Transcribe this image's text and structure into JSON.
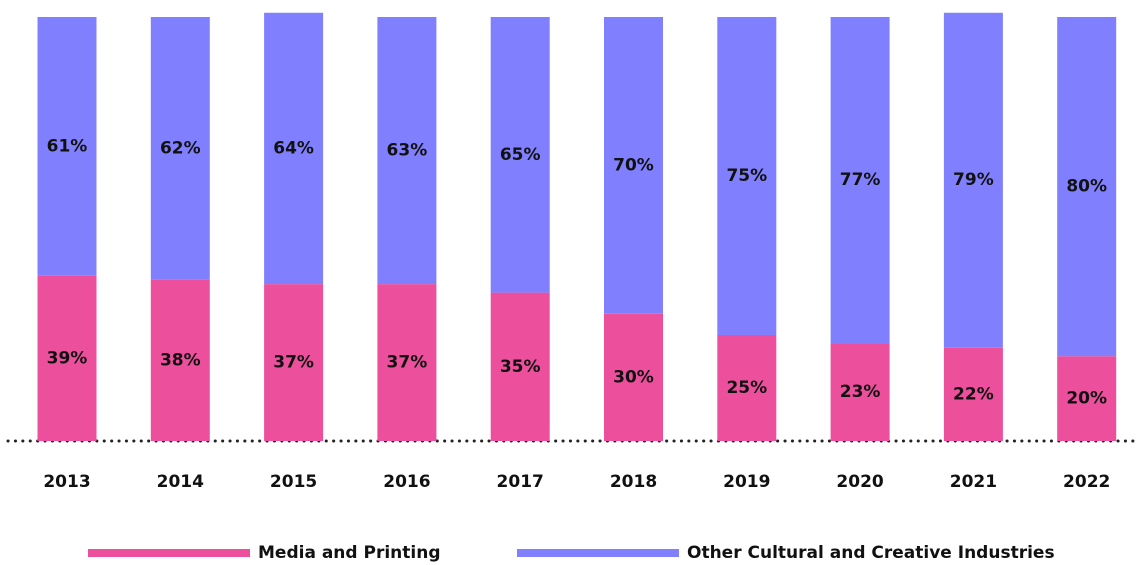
{
  "chart_data": {
    "type": "stacked_bar",
    "categories": [
      "2013",
      "2014",
      "2015",
      "2016",
      "2017",
      "2018",
      "2019",
      "2020",
      "2021",
      "2022"
    ],
    "series": [
      {
        "name": "Media and Printing",
        "color": "#ec4f9b",
        "values": [
          39,
          38,
          37,
          37,
          35,
          30,
          25,
          23,
          22,
          20
        ]
      },
      {
        "name": "Other Cultural and Creative Industries",
        "color": "#8080ff",
        "values": [
          61,
          62,
          64,
          63,
          65,
          70,
          75,
          77,
          79,
          80
        ]
      }
    ],
    "value_labels": [
      [
        "39%",
        "38%",
        "37%",
        "37%",
        "35%",
        "30%",
        "25%",
        "23%",
        "22%",
        "20%"
      ],
      [
        "61%",
        "62%",
        "64%",
        "63%",
        "65%",
        "70%",
        "75%",
        "77%",
        "79%",
        "80%"
      ]
    ],
    "ylim": [
      0,
      100
    ],
    "legend": "bottom"
  }
}
